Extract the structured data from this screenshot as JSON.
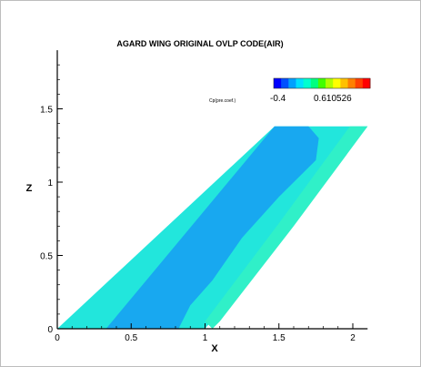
{
  "chart_data": {
    "type": "contour",
    "title": "AGARD WING ORIGINAL OVLP CODE(AIR)",
    "xlabel": "X",
    "ylabel": "Z",
    "xlim": [
      0,
      2.1
    ],
    "ylim": [
      0,
      1.9
    ],
    "x_ticks": [
      "0",
      "0.5",
      "1",
      "1.5",
      "2"
    ],
    "y_ticks": [
      "0",
      "0.5",
      "1",
      "1.5"
    ],
    "wing_planform": [
      [
        0,
        0
      ],
      [
        1.0,
        0
      ],
      [
        2.1,
        1.38
      ],
      [
        1.47,
        1.38
      ]
    ],
    "inner_region": [
      [
        0.33,
        0
      ],
      [
        0.82,
        0
      ],
      [
        0.9,
        0.16
      ],
      [
        1.05,
        0.33
      ],
      [
        1.25,
        0.62
      ],
      [
        1.5,
        0.9
      ],
      [
        1.75,
        1.15
      ],
      [
        1.77,
        1.3
      ],
      [
        1.7,
        1.38
      ],
      [
        1.47,
        1.38
      ]
    ],
    "outer_band": [
      [
        1.05,
        0
      ],
      [
        1.1,
        0.05
      ],
      [
        1.6,
        0.7
      ],
      [
        2.1,
        1.38
      ],
      [
        1.98,
        1.38
      ],
      [
        1.5,
        0.72
      ],
      [
        1.0,
        0.05
      ]
    ],
    "colorbar": {
      "title": "Cp(pre.coef.)",
      "min_label": "-0.4",
      "max_label": "0.610526",
      "colors": [
        "#0000ff",
        "#0050ff",
        "#00a0ff",
        "#00e0ff",
        "#00ffd0",
        "#00ff80",
        "#40ff00",
        "#b0ff00",
        "#ffff00",
        "#ffc000",
        "#ff8000",
        "#ff4000",
        "#ff0000"
      ]
    },
    "fill_colors": {
      "base": "#22e6dc",
      "inner": "#18a8f0",
      "outer": "#30f0c8"
    }
  }
}
